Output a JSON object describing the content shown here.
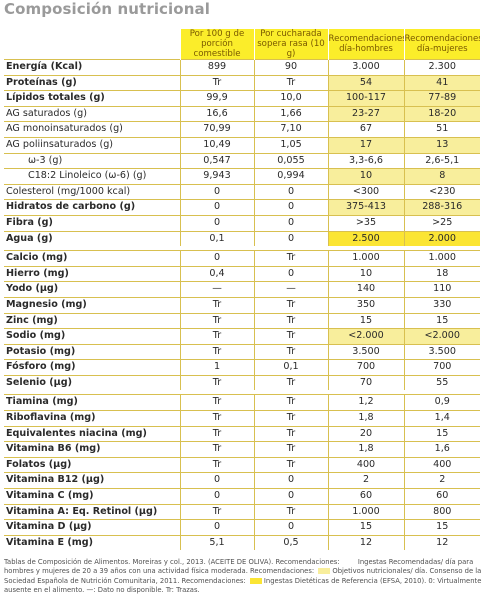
{
  "title": "Composición nutricional",
  "headers": [
    "Por 100 g de porción comestible",
    "Por cucharada sopera rasa (10 g)",
    "Recomendaciones día-hombres",
    "Recomendaciones día-mujeres"
  ],
  "rows": [
    {
      "label": "Energía (Kcal)",
      "v": [
        "899",
        "90",
        "3.000",
        "2.300"
      ],
      "bold": true,
      "hl": "",
      "first": true
    },
    {
      "label": "Proteínas (g)",
      "v": [
        "Tr",
        "Tr",
        "54",
        "41"
      ],
      "bold": true,
      "hl": "light"
    },
    {
      "label": "Lípidos totales (g)",
      "v": [
        "99,9",
        "10,0",
        "100-117",
        "77-89"
      ],
      "bold": true,
      "hl": "light"
    },
    {
      "label": "AG saturados (g)",
      "v": [
        "16,6",
        "1,66",
        "23-27",
        "18-20"
      ],
      "bold": false,
      "hl": "light"
    },
    {
      "label": "AG monoinsaturados (g)",
      "v": [
        "70,99",
        "7,10",
        "67",
        "51"
      ],
      "bold": false,
      "hl": ""
    },
    {
      "label": "AG poliinsaturados (g)",
      "v": [
        "10,49",
        "1,05",
        "17",
        "13"
      ],
      "bold": false,
      "hl": "light"
    },
    {
      "label": "ω-3 (g)",
      "v": [
        "0,547",
        "0,055",
        "3,3-6,6",
        "2,6-5,1"
      ],
      "bold": false,
      "hl": "",
      "indent": true
    },
    {
      "label": "C18:2 Linoleico (ω-6) (g)",
      "v": [
        "9,943",
        "0,994",
        "10",
        "8"
      ],
      "bold": false,
      "hl": "light",
      "indent": true
    },
    {
      "label": "Colesterol (mg/1000 kcal)",
      "v": [
        "0",
        "0",
        "<300",
        "<230"
      ],
      "bold": false,
      "hl": ""
    },
    {
      "label": "Hidratos de carbono (g)",
      "v": [
        "0",
        "0",
        "375-413",
        "288-316"
      ],
      "bold": true,
      "hl": "light"
    },
    {
      "label": "Fibra (g)",
      "v": [
        "0",
        "0",
        ">35",
        ">25"
      ],
      "bold": true,
      "hl": ""
    },
    {
      "label": "Agua (g)",
      "v": [
        "0,1",
        "0",
        "2.500",
        "2.000"
      ],
      "bold": true,
      "hl": "strong"
    },
    {
      "gap": true
    },
    {
      "label": "Calcio (mg)",
      "v": [
        "0",
        "Tr",
        "1.000",
        "1.000"
      ],
      "bold": true,
      "hl": "",
      "first": true
    },
    {
      "label": "Hierro (mg)",
      "v": [
        "0,4",
        "0",
        "10",
        "18"
      ],
      "bold": true,
      "hl": ""
    },
    {
      "label": "Yodo (µg)",
      "v": [
        "—",
        "—",
        "140",
        "110"
      ],
      "bold": true,
      "hl": ""
    },
    {
      "label": "Magnesio (mg)",
      "v": [
        "Tr",
        "Tr",
        "350",
        "330"
      ],
      "bold": true,
      "hl": ""
    },
    {
      "label": "Zinc (mg)",
      "v": [
        "Tr",
        "Tr",
        "15",
        "15"
      ],
      "bold": true,
      "hl": ""
    },
    {
      "label": "Sodio (mg)",
      "v": [
        "Tr",
        "Tr",
        "<2.000",
        "<2.000"
      ],
      "bold": true,
      "hl": "light"
    },
    {
      "label": "Potasio (mg)",
      "v": [
        "Tr",
        "Tr",
        "3.500",
        "3.500"
      ],
      "bold": true,
      "hl": ""
    },
    {
      "label": "Fósforo (mg)",
      "v": [
        "1",
        "0,1",
        "700",
        "700"
      ],
      "bold": true,
      "hl": ""
    },
    {
      "label": "Selenio (µg)",
      "v": [
        "Tr",
        "Tr",
        "70",
        "55"
      ],
      "bold": true,
      "hl": ""
    },
    {
      "gap": true
    },
    {
      "label": "Tiamina (mg)",
      "v": [
        "Tr",
        "Tr",
        "1,2",
        "0,9"
      ],
      "bold": true,
      "hl": "",
      "first": true
    },
    {
      "label": "Riboflavina (mg)",
      "v": [
        "Tr",
        "Tr",
        "1,8",
        "1,4"
      ],
      "bold": true,
      "hl": ""
    },
    {
      "label": "Equivalentes niacina (mg)",
      "v": [
        "Tr",
        "Tr",
        "20",
        "15"
      ],
      "bold": true,
      "hl": ""
    },
    {
      "label": "Vitamina B6 (mg)",
      "v": [
        "Tr",
        "Tr",
        "1,8",
        "1,6"
      ],
      "bold": true,
      "hl": ""
    },
    {
      "label": "Folatos (µg)",
      "v": [
        "Tr",
        "Tr",
        "400",
        "400"
      ],
      "bold": true,
      "hl": ""
    },
    {
      "label": "Vitamina B12 (µg)",
      "v": [
        "0",
        "0",
        "2",
        "2"
      ],
      "bold": true,
      "hl": ""
    },
    {
      "label": "Vitamina C (mg)",
      "v": [
        "0",
        "0",
        "60",
        "60"
      ],
      "bold": true,
      "hl": ""
    },
    {
      "label": "Vitamina A: Eq. Retinol (µg)",
      "v": [
        "Tr",
        "Tr",
        "1.000",
        "800"
      ],
      "bold": true,
      "hl": ""
    },
    {
      "label": "Vitamina D (µg)",
      "v": [
        "0",
        "0",
        "15",
        "15"
      ],
      "bold": true,
      "hl": ""
    },
    {
      "label": "Vitamina E (mg)",
      "v": [
        "5,1",
        "0,5",
        "12",
        "12"
      ],
      "bold": true,
      "hl": ""
    }
  ],
  "footnote": {
    "line1": "Tablas de Composición de Alimentos. Moreiras y col., 2013. (ACEITE DE OLIVA). Recomendaciones:",
    "legend1": "Ingestas Recomendadas/",
    "line2": "día para hombres y mujeres de 20 a 39 años con una actividad física moderada. Recomendaciones:",
    "legend2": "Objetivos nutricionales/",
    "line3": "día. Consenso de la Sociedad Española de Nutrición Comunitaria, 2011. Recomendaciones:",
    "legend3": "Ingestas Dietéticas de Referencia",
    "line4": "(EFSA, 2010). 0: Virtualmente ausente en el alimento. —: Dato no disponible. Tr: Trazas."
  }
}
